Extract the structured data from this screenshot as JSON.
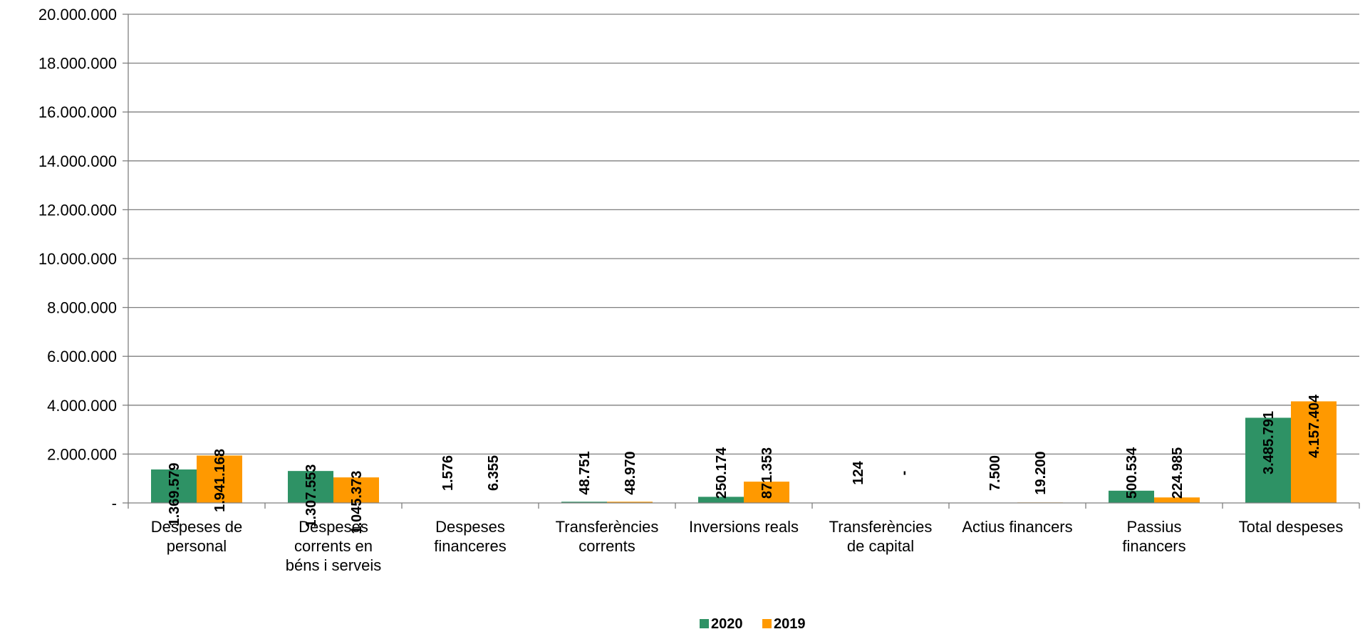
{
  "chart_data": {
    "type": "bar",
    "categories": [
      [
        "Despeses de",
        "personal"
      ],
      [
        "Despeses",
        "corrents en",
        "béns i serveis"
      ],
      [
        "Despeses",
        "financeres"
      ],
      [
        "Transferències",
        "corrents"
      ],
      [
        "Inversions reals"
      ],
      [
        "Transferències",
        "de capital"
      ],
      [
        "Actius financers"
      ],
      [
        "Passius",
        "financers"
      ],
      [
        "Total despeses"
      ]
    ],
    "series": [
      {
        "name": "2020",
        "color": "#2e9265",
        "values": [
          1369579,
          1307553,
          1576,
          48751,
          250174,
          124,
          7500,
          500534,
          3485791
        ],
        "labels": [
          "1.369.579",
          "1.307.553",
          "1.576",
          "48.751",
          "250.174",
          "124",
          "7.500",
          "500.534",
          "3.485.791"
        ]
      },
      {
        "name": "2019",
        "color": "#ff9900",
        "values": [
          1941168,
          1045373,
          6355,
          48970,
          871353,
          0,
          19200,
          224985,
          4157404
        ],
        "labels": [
          "1.941.168",
          "1.045.373",
          "6.355",
          "48.970",
          "871.353",
          "-",
          "19.200",
          "224.985",
          "4.157.404"
        ]
      }
    ],
    "ylim": [
      0,
      20000000
    ],
    "yticks": [
      {
        "value": 0,
        "label": "-"
      },
      {
        "value": 2000000,
        "label": "2.000.000"
      },
      {
        "value": 4000000,
        "label": "4.000.000"
      },
      {
        "value": 6000000,
        "label": "6.000.000"
      },
      {
        "value": 8000000,
        "label": "8.000.000"
      },
      {
        "value": 10000000,
        "label": "10.000.000"
      },
      {
        "value": 12000000,
        "label": "12.000.000"
      },
      {
        "value": 14000000,
        "label": "14.000.000"
      },
      {
        "value": 16000000,
        "label": "16.000.000"
      },
      {
        "value": 18000000,
        "label": "18.000.000"
      },
      {
        "value": 20000000,
        "label": "20.000.000"
      }
    ],
    "grid": true,
    "legend_position": "bottom"
  }
}
